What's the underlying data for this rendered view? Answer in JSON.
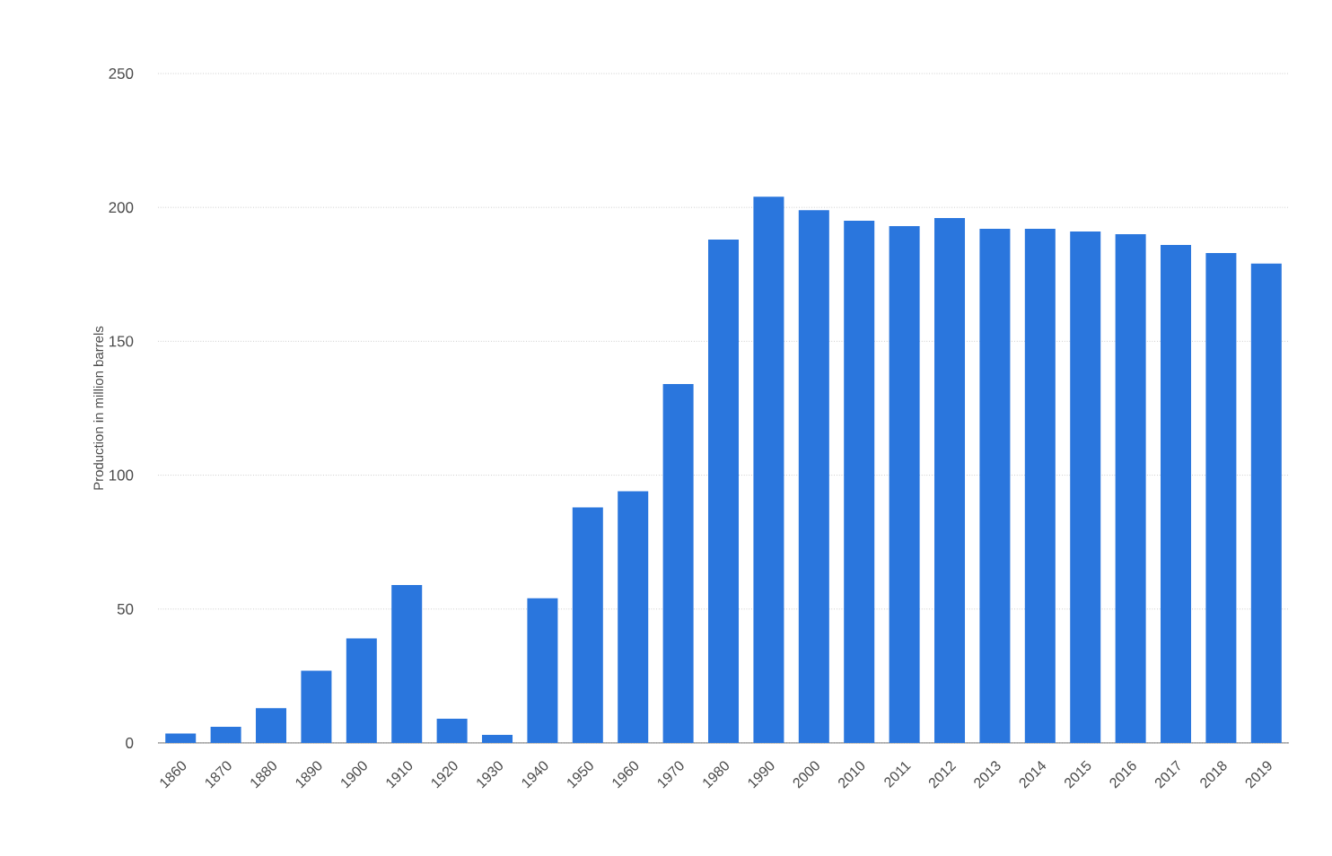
{
  "chart_data": {
    "type": "bar",
    "ylabel": "Production in million barrels",
    "categories": [
      "1860",
      "1870",
      "1880",
      "1890",
      "1900",
      "1910",
      "1920",
      "1930",
      "1940",
      "1950",
      "1960",
      "1970",
      "1980",
      "1990",
      "2000",
      "2010",
      "2011",
      "2012",
      "2013",
      "2014",
      "2015",
      "2016",
      "2017",
      "2018",
      "2019"
    ],
    "values": [
      3.5,
      6,
      13,
      27,
      39,
      59,
      9,
      3,
      54,
      88,
      94,
      134,
      188,
      204,
      199,
      195,
      193,
      196,
      192,
      192,
      191,
      190,
      186,
      183,
      179
    ],
    "color": "#2a76dd",
    "ylim": [
      0,
      250
    ],
    "yticks": [
      0,
      50,
      100,
      150,
      200,
      250
    ],
    "grid": "y"
  }
}
